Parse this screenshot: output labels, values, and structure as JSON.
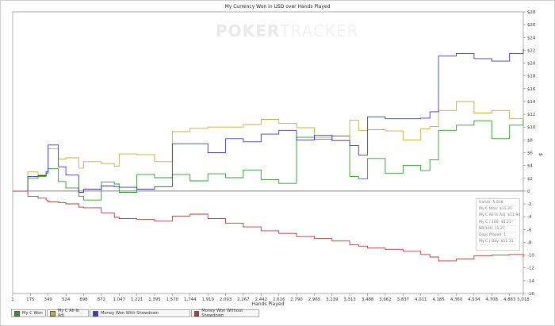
{
  "chart_data": {
    "type": "line",
    "title": "My Currency Won in USD over Hands Played",
    "xlabel": "Hands Played",
    "ylabel": "$",
    "xlim": [
      1,
      5018
    ],
    "ylim": [
      -16,
      28
    ],
    "x_ticks": [
      "1",
      "175",
      "349",
      "524",
      "698",
      "872",
      "1,047",
      "1,221",
      "1,395",
      "1,570",
      "1,744",
      "1,919",
      "2,093",
      "2,267",
      "2,442",
      "2,616",
      "2,790",
      "2,965",
      "3,139",
      "3,313",
      "3,488",
      "3,662",
      "3,837",
      "4,011",
      "4,185",
      "4,360",
      "4,534",
      "4,708",
      "4,883",
      "5,018"
    ],
    "y_ticks": [
      "-16",
      "-14",
      "-12",
      "-10",
      "-8",
      "-6",
      "-4",
      "-2",
      "0",
      "$2",
      "$4",
      "$6",
      "$8",
      "$10",
      "$12",
      "$14",
      "$16",
      "$18",
      "$20",
      "$22",
      "$24",
      "$26",
      "$28"
    ],
    "series": [
      {
        "name": "My C Won",
        "color": "#2e9a2e",
        "x": [
          1,
          150,
          250,
          330,
          349,
          450,
          524,
          650,
          698,
          872,
          1000,
          1047,
          1221,
          1395,
          1570,
          1744,
          1919,
          2093,
          2267,
          2442,
          2616,
          2790,
          2965,
          3139,
          3313,
          3400,
          3488,
          3662,
          3837,
          4011,
          4100,
          4185,
          4360,
          4534,
          4708,
          4883,
          5018
        ],
        "y": [
          0,
          2,
          2.3,
          2.8,
          3.5,
          1.5,
          0.5,
          -0.8,
          -1.4,
          1.4,
          1.1,
          -0.2,
          2.6,
          2.1,
          2.6,
          1.6,
          2.7,
          2.1,
          3.3,
          1.8,
          1.2,
          8.4,
          8.1,
          8.6,
          2.3,
          1.9,
          5.1,
          2.8,
          4.0,
          3.2,
          4.9,
          9.5,
          10.3,
          11.0,
          8.2,
          10.3,
          11.3
        ]
      },
      {
        "name": "My C All-In Adj",
        "color": "#b5b53a",
        "x": [
          1,
          150,
          250,
          330,
          349,
          450,
          524,
          650,
          698,
          872,
          1000,
          1047,
          1221,
          1395,
          1570,
          1744,
          1919,
          2093,
          2267,
          2442,
          2616,
          2790,
          2965,
          3139,
          3313,
          3400,
          3488,
          3662,
          3837,
          4011,
          4100,
          4185,
          4360,
          4534,
          4708,
          4883,
          5018
        ],
        "y": [
          0,
          3,
          2.5,
          3,
          6.6,
          5,
          5.2,
          3.6,
          4.6,
          4.3,
          3.9,
          5.8,
          5.7,
          4.6,
          9.3,
          9.8,
          10.0,
          10.0,
          10.4,
          11.2,
          10.6,
          9.9,
          8.4,
          7.9,
          11.1,
          9.5,
          9.6,
          9.4,
          8.0,
          9.7,
          10.1,
          12.6,
          14.0,
          12.2,
          12.6,
          11.3,
          11.9
        ]
      },
      {
        "name": "Money Won With Showdown",
        "color": "#3a3abd",
        "x": [
          1,
          150,
          250,
          330,
          349,
          450,
          524,
          650,
          698,
          872,
          1000,
          1047,
          1221,
          1395,
          1570,
          1744,
          1919,
          2093,
          2267,
          2442,
          2616,
          2790,
          2965,
          3139,
          3313,
          3400,
          3488,
          3662,
          3837,
          4011,
          4100,
          4185,
          4360,
          4534,
          4708,
          4883,
          5018
        ],
        "y": [
          0,
          2.3,
          2.4,
          3,
          7.2,
          3.8,
          2.5,
          -0.2,
          0.3,
          0.8,
          0.7,
          0.6,
          0.3,
          0.7,
          7.4,
          7.4,
          6.0,
          8.2,
          7.7,
          8.9,
          9.5,
          8.0,
          8.7,
          7.9,
          7.1,
          5.6,
          11.6,
          11.3,
          11.3,
          11.4,
          12.4,
          21.1,
          21.5,
          20.7,
          20.3,
          21.5,
          22.2
        ]
      },
      {
        "name": "Money Won Without Showdown",
        "color": "#b23a3a",
        "x": [
          1,
          150,
          250,
          330,
          349,
          450,
          524,
          650,
          698,
          872,
          1000,
          1047,
          1221,
          1395,
          1570,
          1744,
          1919,
          2093,
          2267,
          2442,
          2616,
          2790,
          2965,
          3139,
          3313,
          3400,
          3488,
          3662,
          3837,
          4011,
          4100,
          4185,
          4360,
          4534,
          4708,
          4883,
          5018
        ],
        "y": [
          0,
          -0.8,
          -1.1,
          -1.4,
          -1.7,
          -1.8,
          -2.0,
          -2.5,
          -2.6,
          -3.4,
          -4.1,
          -4.3,
          -4.4,
          -4.7,
          -3.9,
          -3.6,
          -4.3,
          -5.0,
          -5.6,
          -6.2,
          -6.6,
          -7.1,
          -7.4,
          -7.8,
          -8.4,
          -8.6,
          -8.9,
          -9.1,
          -9.4,
          -9.9,
          -10.3,
          -10.9,
          -10.6,
          -10.1,
          -10.0,
          -9.9,
          -10.4
        ]
      }
    ],
    "grid": false,
    "legend_position": "bottom-left"
  },
  "stats_box": {
    "hands": "Hands: 5,018",
    "won": "My C Won: $11.31",
    "allin": "My C All-In Adj: $11.94",
    "per100": "My C / 100: $0.23",
    "bb100": "BB/100: 11.27",
    "days": "Days Played: 1",
    "perday": "My C / Day: $11.31"
  },
  "watermark": {
    "part1": "POKER",
    "part2": "TRACKER"
  }
}
